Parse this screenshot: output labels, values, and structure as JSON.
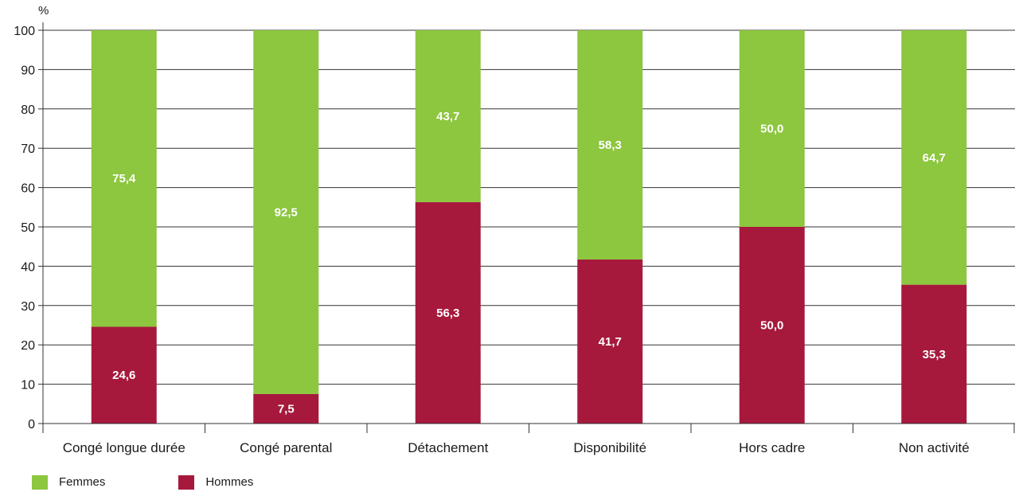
{
  "chart_data": {
    "type": "bar",
    "stacked": true,
    "unit_label": "%",
    "categories": [
      "Congé longue durée",
      "Congé parental",
      "Détachement",
      "Disponibilité",
      "Hors cadre",
      "Non activité"
    ],
    "series": [
      {
        "name": "Hommes",
        "color": "#a6193c",
        "values": [
          24.6,
          7.5,
          56.3,
          41.7,
          50.0,
          35.3
        ],
        "labels": [
          "24,6",
          "7,5",
          "56,3",
          "41,7",
          "50,0",
          "35,3"
        ]
      },
      {
        "name": "Femmes",
        "color": "#8dc63f",
        "values": [
          75.4,
          92.5,
          43.7,
          58.3,
          50.0,
          64.7
        ],
        "labels": [
          "75,4",
          "92,5",
          "43,7",
          "58,3",
          "50,0",
          "64,7"
        ]
      }
    ],
    "y_ticks": [
      "0",
      "10",
      "20",
      "30",
      "40",
      "50",
      "60",
      "70",
      "80",
      "90",
      "100"
    ],
    "ylim": [
      0,
      100
    ],
    "grid": true,
    "legend_position": "bottom-left"
  },
  "legend": [
    {
      "label": "Femmes",
      "color": "#8dc63f"
    },
    {
      "label": "Hommes",
      "color": "#a6193c"
    }
  ]
}
